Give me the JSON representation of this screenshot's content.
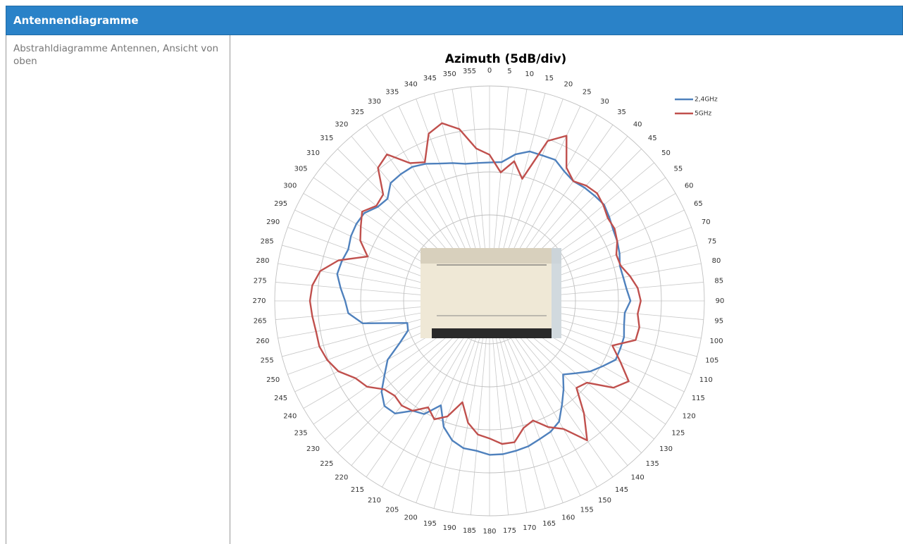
{
  "header": {
    "title": "Antennendiagramme"
  },
  "table": {
    "rows": [
      [
        "Abstrahldiagramme Antennen, Ansicht von oben"
      ]
    ]
  },
  "chart_data": {
    "type": "polar",
    "title": "Azimuth (5dB/div)",
    "x": [
      0,
      5,
      10,
      15,
      20,
      25,
      30,
      35,
      40,
      45,
      50,
      55,
      60,
      65,
      70,
      75,
      80,
      85,
      90,
      95,
      100,
      105,
      110,
      115,
      120,
      125,
      130,
      135,
      140,
      145,
      150,
      155,
      160,
      165,
      170,
      175,
      180,
      185,
      190,
      195,
      200,
      205,
      210,
      215,
      220,
      225,
      230,
      235,
      240,
      245,
      250,
      255,
      260,
      265,
      270,
      275,
      280,
      285,
      290,
      295,
      300,
      305,
      310,
      315,
      320,
      325,
      330,
      335,
      340,
      345,
      350,
      355
    ],
    "rlim": [
      0,
      25
    ],
    "rticks": [
      0,
      5,
      10,
      15,
      20,
      25
    ],
    "grid": true,
    "legend": "upper right",
    "series": [
      {
        "name": "2,4GHz",
        "color": "#4f81bd",
        "values": [
          16.1,
          16.2,
          17.3,
          18.0,
          18.0,
          18.1,
          17.4,
          17.0,
          17.2,
          17.3,
          17.4,
          17.0,
          16.6,
          16.4,
          16.1,
          15.7,
          15.8,
          16.0,
          16.4,
          15.8,
          15.9,
          16.2,
          16.2,
          16.2,
          15.2,
          14.3,
          13.1,
          12.1,
          13.4,
          14.7,
          16.2,
          16.8,
          17.1,
          17.5,
          17.7,
          17.9,
          17.9,
          17.5,
          17.4,
          16.8,
          15.6,
          13.4,
          15.2,
          15.6,
          17.1,
          17.3,
          16.4,
          14.9,
          13.7,
          11.5,
          10.1,
          9.9,
          15.0,
          16.5,
          16.8,
          17.4,
          18.0,
          17.8,
          17.5,
          17.8,
          17.9,
          17.8,
          17.0,
          16.8,
          17.9,
          18.0,
          18.0,
          17.6,
          17.0,
          16.6,
          16.2,
          16.1
        ]
      },
      {
        "name": "5GHz",
        "color": "#c0504d",
        "values": [
          17.0,
          15.0,
          16.5,
          14.7,
          19.8,
          21.2,
          17.9,
          17.0,
          17.5,
          17.7,
          17.3,
          16.8,
          16.8,
          16.4,
          15.7,
          15.8,
          16.6,
          17.3,
          17.6,
          17.3,
          17.7,
          17.6,
          15.2,
          16.8,
          18.7,
          17.6,
          14.8,
          14.3,
          17.1,
          19.8,
          17.2,
          16.2,
          14.8,
          15.3,
          16.7,
          16.7,
          16.0,
          15.6,
          14.4,
          12.2,
          14.3,
          15.2,
          14.3,
          15.6,
          15.9,
          15.6,
          16.0,
          17.4,
          18.0,
          19.4,
          20.1,
          20.5,
          20.5,
          20.7,
          20.9,
          20.7,
          20.0,
          18.2,
          15.1,
          16.6,
          17.3,
          18.1,
          17.2,
          17.5,
          20.2,
          20.8,
          18.5,
          17.8,
          20.7,
          21.4,
          20.3,
          17.8
        ]
      }
    ]
  }
}
